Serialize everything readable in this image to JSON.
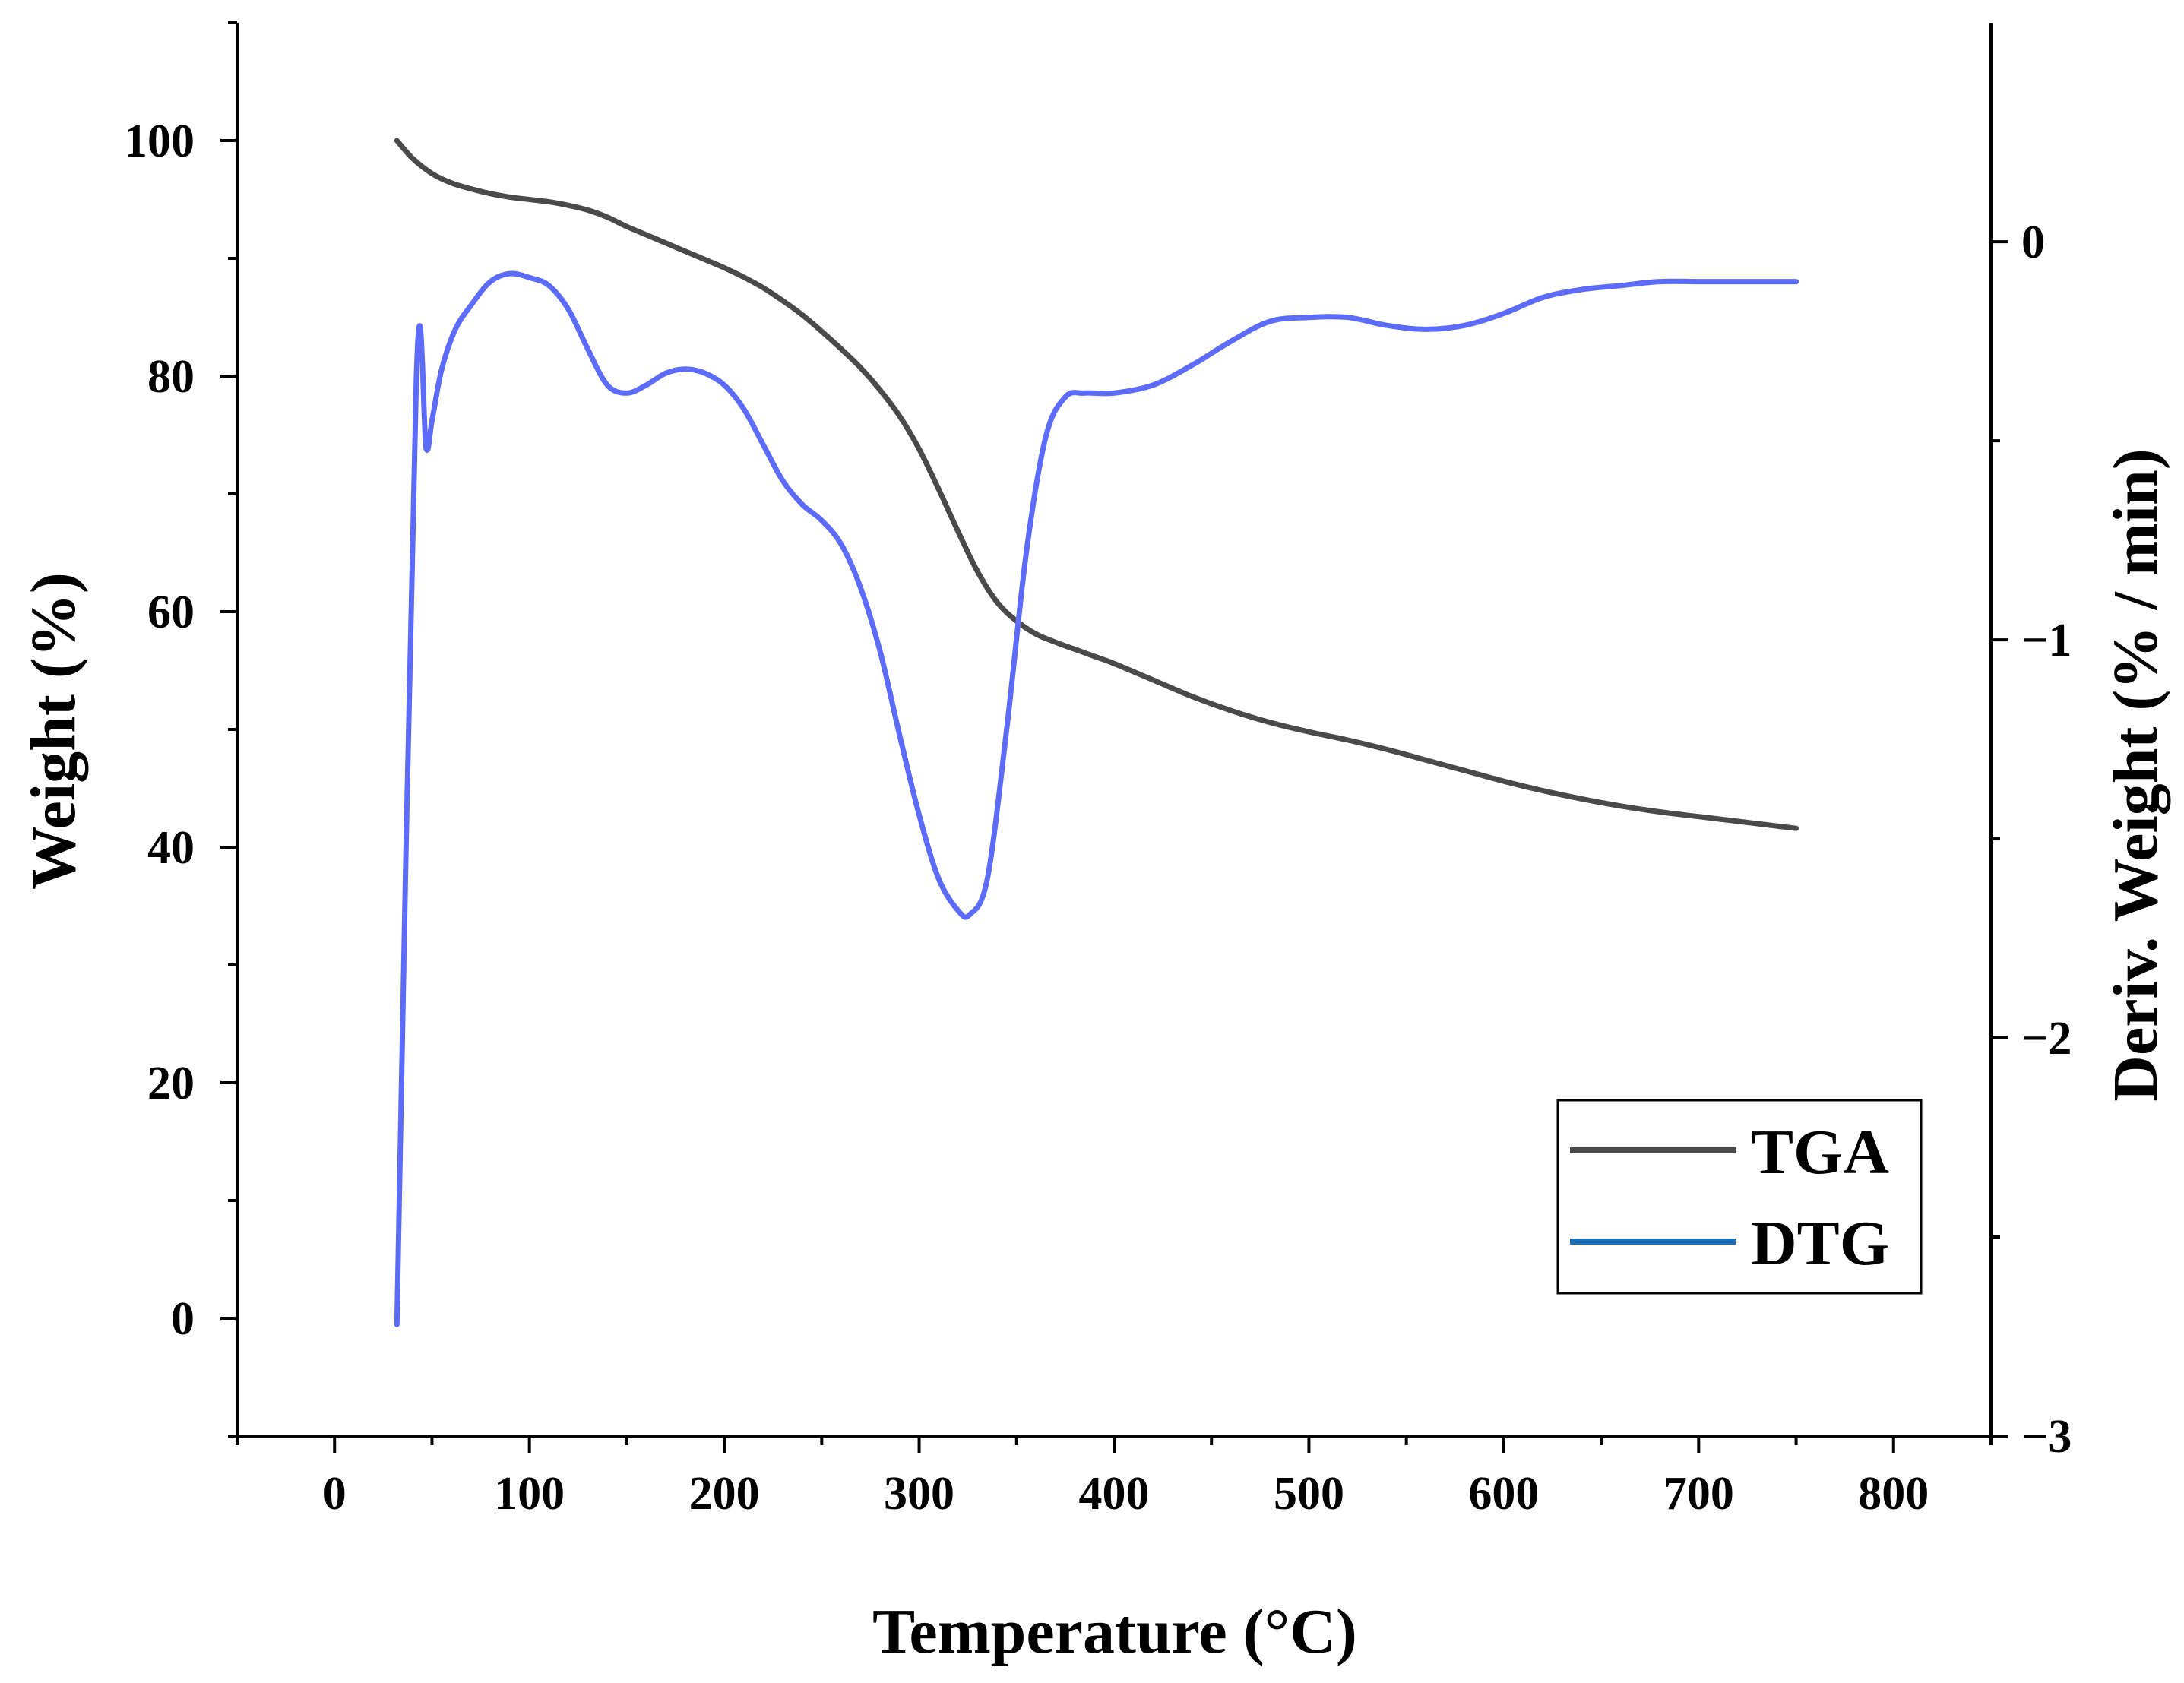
{
  "chart_data": {
    "type": "line",
    "title": "",
    "xlabel": "Temperature (°C)",
    "ylabel_left": "Weight (%)",
    "ylabel_right": "Deriv. Weight (% / min)",
    "xlim": [
      -50,
      850
    ],
    "ylim_left": [
      -10,
      110
    ],
    "ylim_right": [
      -3,
      0.55
    ],
    "x_ticks": [
      0,
      100,
      200,
      300,
      400,
      500,
      600,
      700,
      800
    ],
    "x_tick_labels": [
      "0",
      "100",
      "200",
      "300",
      "400",
      "500",
      "600",
      "700",
      "800"
    ],
    "y_left_ticks": [
      0,
      20,
      40,
      60,
      80,
      100
    ],
    "y_left_tick_labels": [
      "0",
      "20",
      "40",
      "60",
      "80",
      "100"
    ],
    "y_right_ticks": [
      0,
      -1,
      -2,
      -3
    ],
    "y_right_tick_labels": [
      "0",
      "−1",
      "−2",
      "−3"
    ],
    "grid": false,
    "legend_position": "bottom-right",
    "series": [
      {
        "name": "TGA",
        "axis": "left",
        "color": "#4a4a4a",
        "x": [
          32,
          40,
          50,
          60,
          70,
          80,
          90,
          100,
          110,
          120,
          130,
          140,
          150,
          160,
          170,
          180,
          190,
          200,
          210,
          220,
          230,
          240,
          250,
          260,
          270,
          280,
          290,
          300,
          310,
          320,
          330,
          340,
          350,
          360,
          370,
          380,
          390,
          400,
          420,
          440,
          460,
          480,
          500,
          520,
          540,
          560,
          580,
          600,
          620,
          640,
          660,
          680,
          700,
          720,
          740,
          750
        ],
        "y": [
          100,
          98.5,
          97.2,
          96.4,
          95.9,
          95.5,
          95.2,
          95.0,
          94.8,
          94.5,
          94.1,
          93.5,
          92.7,
          92.0,
          91.3,
          90.6,
          89.9,
          89.2,
          88.4,
          87.5,
          86.4,
          85.2,
          83.8,
          82.3,
          80.7,
          78.8,
          76.6,
          73.8,
          70.4,
          66.8,
          63.4,
          60.8,
          59.2,
          58.1,
          57.4,
          56.8,
          56.2,
          55.6,
          54.2,
          52.8,
          51.6,
          50.6,
          49.8,
          49.1,
          48.3,
          47.4,
          46.5,
          45.6,
          44.8,
          44.1,
          43.5,
          43.0,
          42.6,
          42.2,
          41.8,
          41.6
        ]
      },
      {
        "name": "DTG",
        "axis": "right",
        "color": "#5c6bf8",
        "x": [
          32,
          42,
          47,
          50,
          55,
          62,
          70,
          80,
          90,
          100,
          110,
          120,
          130,
          140,
          150,
          160,
          170,
          180,
          190,
          200,
          210,
          220,
          230,
          240,
          250,
          260,
          270,
          280,
          290,
          300,
          310,
          320,
          326,
          335,
          345,
          355,
          365,
          375,
          385,
          400,
          420,
          440,
          460,
          480,
          500,
          520,
          540,
          560,
          580,
          600,
          620,
          640,
          660,
          680,
          700,
          720,
          740,
          750
        ],
        "y": [
          -2.72,
          -0.34,
          -0.52,
          -0.45,
          -0.32,
          -0.22,
          -0.16,
          -0.1,
          -0.08,
          -0.09,
          -0.11,
          -0.17,
          -0.27,
          -0.36,
          -0.38,
          -0.36,
          -0.33,
          -0.32,
          -0.33,
          -0.36,
          -0.42,
          -0.51,
          -0.6,
          -0.66,
          -0.7,
          -0.76,
          -0.87,
          -1.03,
          -1.24,
          -1.44,
          -1.6,
          -1.68,
          -1.69,
          -1.6,
          -1.22,
          -0.78,
          -0.49,
          -0.39,
          -0.38,
          -0.38,
          -0.36,
          -0.31,
          -0.25,
          -0.2,
          -0.19,
          -0.19,
          -0.21,
          -0.22,
          -0.21,
          -0.18,
          -0.14,
          -0.12,
          -0.11,
          -0.1,
          -0.1,
          -0.1,
          -0.1,
          -0.1
        ]
      }
    ]
  }
}
